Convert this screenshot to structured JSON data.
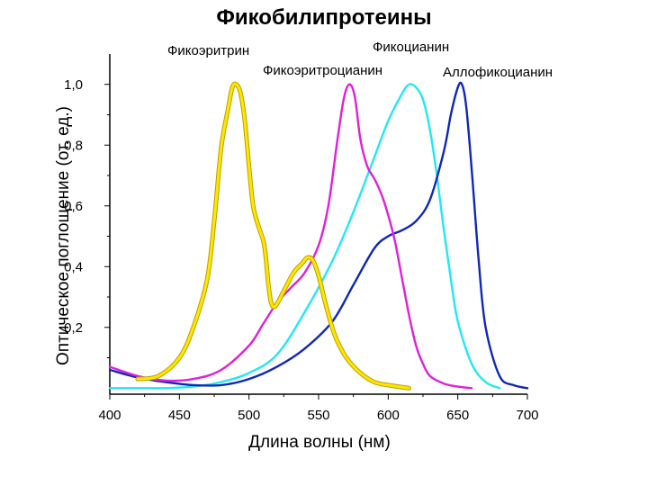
{
  "chart_data": {
    "type": "line",
    "title": "Фикобилипротеины",
    "xlabel": "Длина волны (нм)",
    "ylabel": "Оптическое поглощение (от. ед.)",
    "xlim": [
      400,
      700
    ],
    "ylim": [
      -0.02,
      1.1
    ],
    "x_ticks": [
      400,
      450,
      500,
      550,
      600,
      650,
      700
    ],
    "y_ticks": [
      0.2,
      0.4,
      0.6,
      0.8,
      1.0
    ],
    "y_tick_labels": [
      "0,2",
      "0,4",
      "0,6",
      "0,8",
      "1,0"
    ],
    "grid": false,
    "legend": "labels near peaks",
    "series": [
      {
        "name": "Фикоэритрин",
        "color": "#ffe600",
        "outline": "#b8a000",
        "x": [
          420,
          435,
          450,
          460,
          470,
          475,
          480,
          485,
          488,
          491,
          494,
          497,
          500,
          503,
          507,
          511,
          514,
          516,
          519,
          525,
          532,
          538,
          542,
          546,
          550,
          556,
          562,
          570,
          580,
          590,
          600,
          615
        ],
        "y": [
          0.03,
          0.04,
          0.1,
          0.2,
          0.36,
          0.55,
          0.79,
          0.92,
          0.99,
          1.0,
          0.97,
          0.88,
          0.73,
          0.6,
          0.53,
          0.47,
          0.34,
          0.28,
          0.27,
          0.32,
          0.38,
          0.41,
          0.43,
          0.42,
          0.37,
          0.26,
          0.17,
          0.1,
          0.05,
          0.02,
          0.01,
          0.0
        ]
      },
      {
        "name": "Фикоэритроцианин",
        "color": "#e020d8",
        "x": [
          400,
          420,
          440,
          460,
          480,
          500,
          510,
          520,
          530,
          540,
          550,
          557,
          563,
          568,
          572,
          576,
          580,
          585,
          590,
          595,
          600,
          605,
          610,
          615,
          620,
          625,
          630,
          640,
          650,
          660
        ],
        "y": [
          0.07,
          0.04,
          0.025,
          0.03,
          0.06,
          0.14,
          0.21,
          0.28,
          0.33,
          0.38,
          0.47,
          0.6,
          0.8,
          0.95,
          1.0,
          0.96,
          0.82,
          0.73,
          0.69,
          0.64,
          0.57,
          0.48,
          0.36,
          0.24,
          0.14,
          0.08,
          0.04,
          0.015,
          0.005,
          0.0
        ]
      },
      {
        "name": "Фикоцианин",
        "color": "#22e8f0",
        "x": [
          400,
          420,
          440,
          460,
          480,
          500,
          520,
          540,
          560,
          575,
          590,
          600,
          610,
          615,
          620,
          625,
          630,
          635,
          640,
          645,
          650,
          660,
          670,
          680
        ],
        "y": [
          0.0,
          0.0,
          0.0,
          0.005,
          0.02,
          0.05,
          0.11,
          0.25,
          0.42,
          0.58,
          0.76,
          0.88,
          0.97,
          1.0,
          0.99,
          0.95,
          0.85,
          0.7,
          0.52,
          0.36,
          0.22,
          0.08,
          0.02,
          0.0
        ]
      },
      {
        "name": "Аллофикоцианин",
        "color": "#1028b8",
        "x": [
          400,
          420,
          440,
          460,
          480,
          500,
          520,
          540,
          560,
          575,
          590,
          600,
          610,
          620,
          630,
          640,
          645,
          650,
          653,
          656,
          660,
          665,
          670,
          680,
          690,
          700
        ],
        "y": [
          0.06,
          0.035,
          0.02,
          0.01,
          0.01,
          0.03,
          0.07,
          0.13,
          0.22,
          0.34,
          0.46,
          0.5,
          0.52,
          0.55,
          0.62,
          0.78,
          0.9,
          0.99,
          1.0,
          0.93,
          0.72,
          0.42,
          0.2,
          0.04,
          0.01,
          0.0
        ]
      }
    ]
  }
}
